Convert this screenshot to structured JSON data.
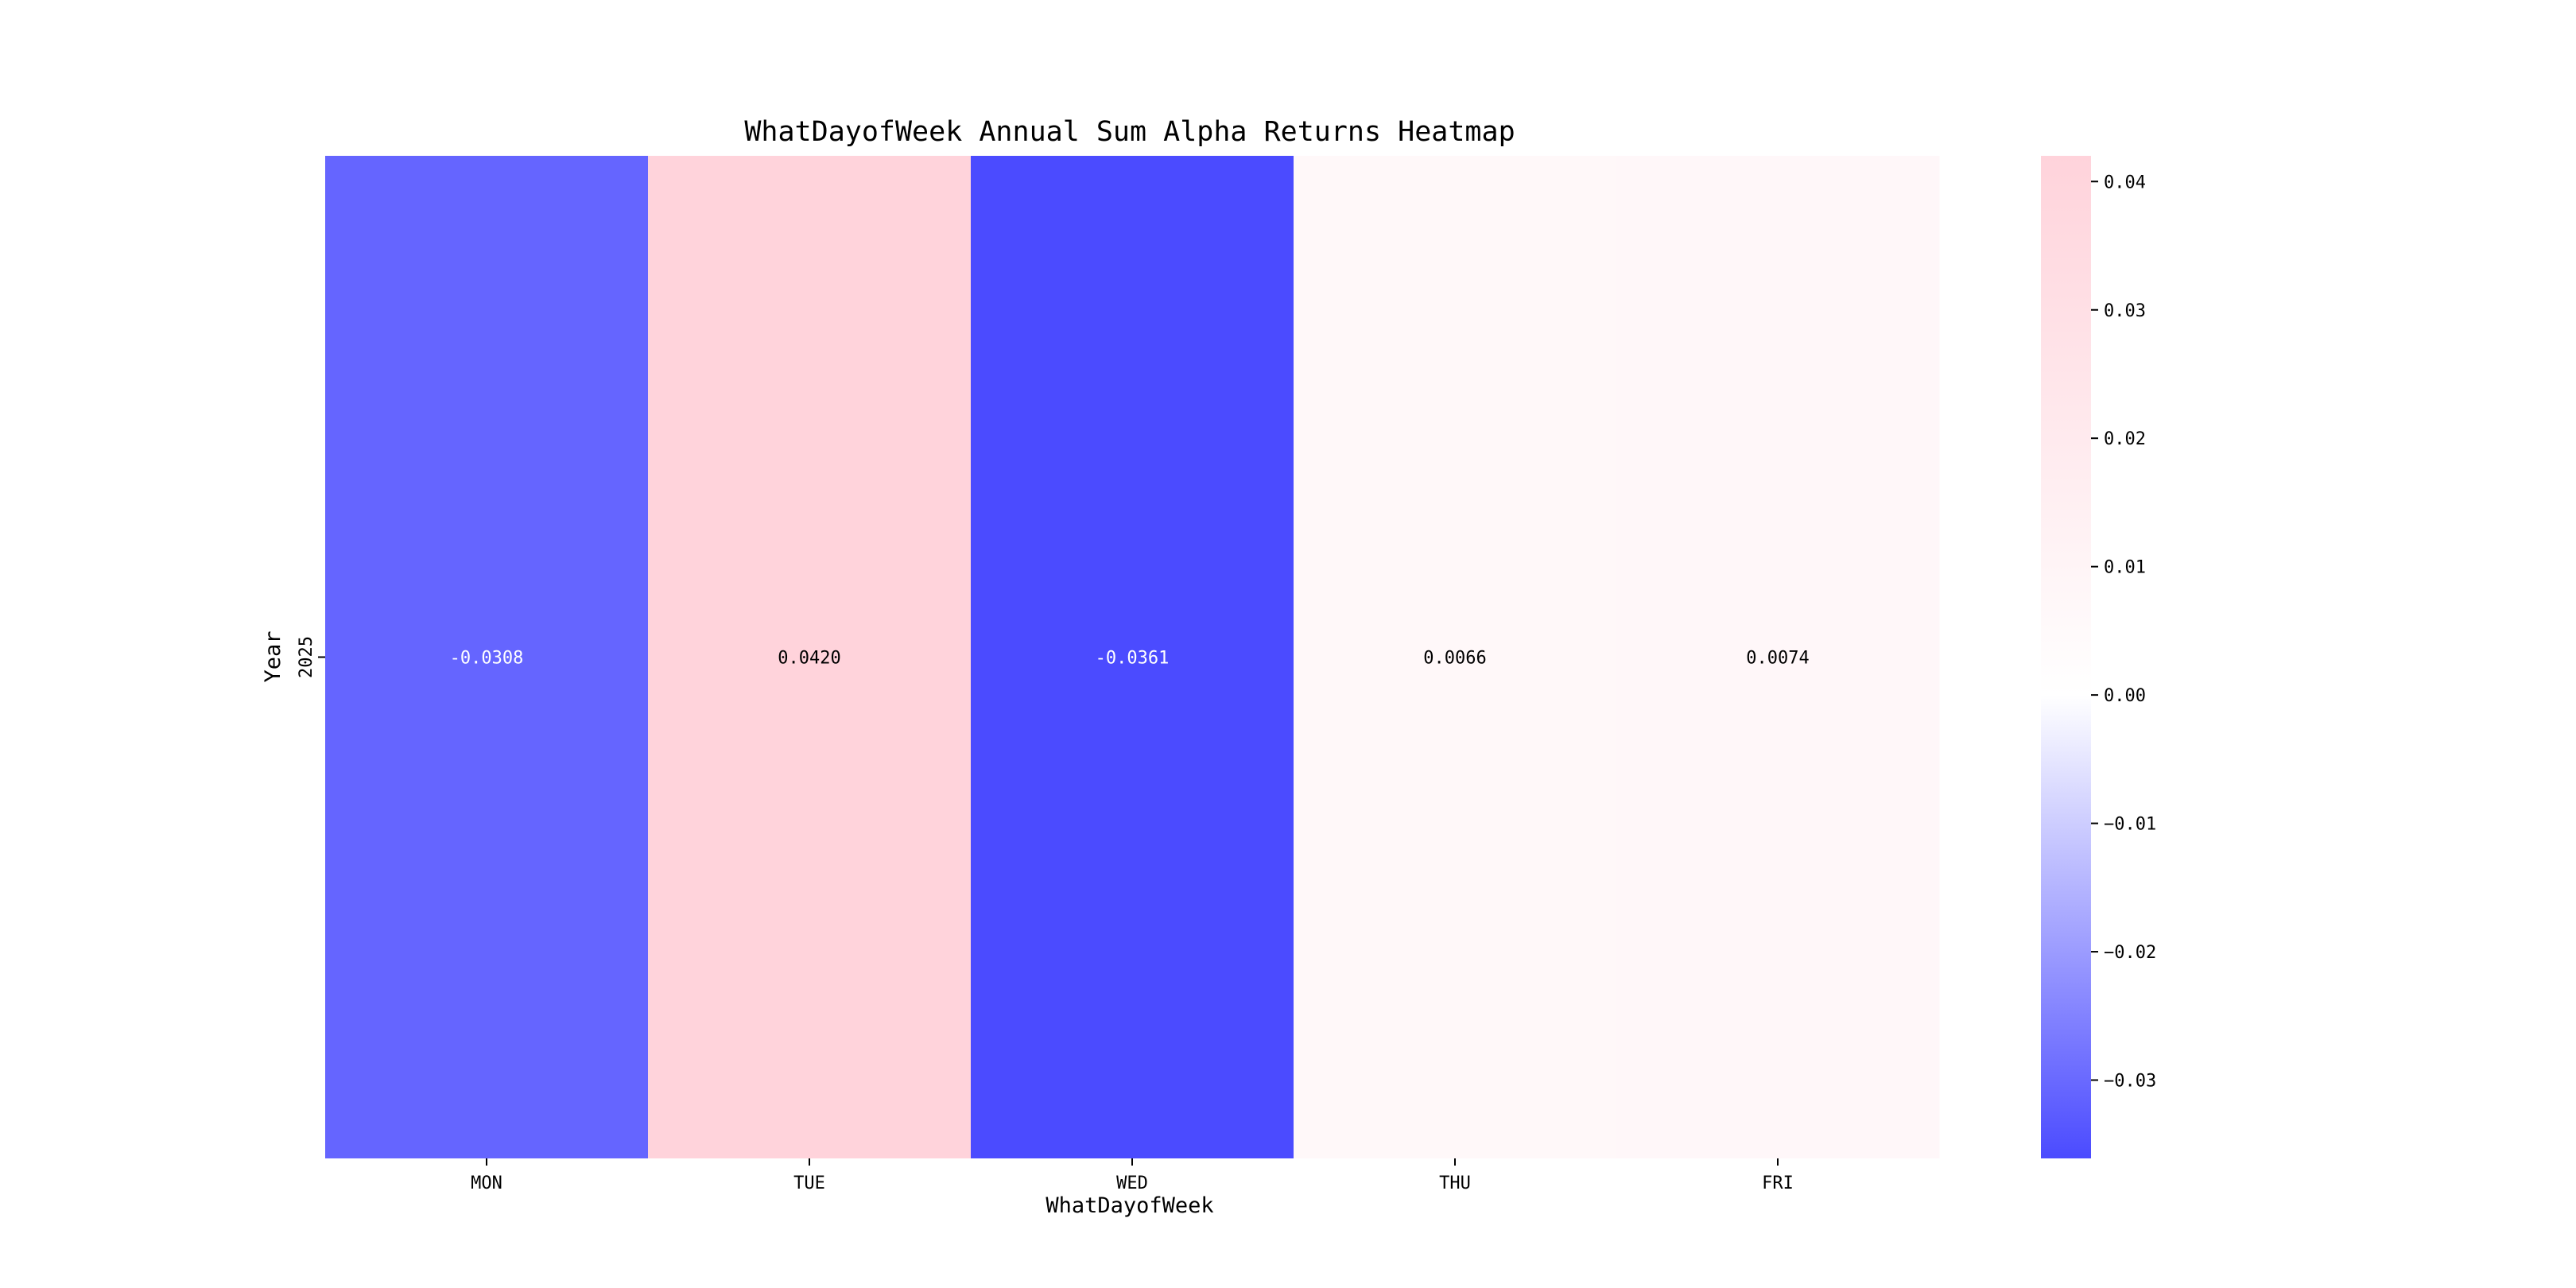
{
  "chart_data": {
    "type": "heatmap",
    "title": "WhatDayofWeek Annual Sum Alpha Returns Heatmap",
    "xlabel": "WhatDayofWeek",
    "ylabel": "Year",
    "x_categories": [
      "MON",
      "TUE",
      "WED",
      "THU",
      "FRI"
    ],
    "y_categories": [
      "2025"
    ],
    "values": [
      [
        -0.0308,
        0.042,
        -0.0361,
        0.0066,
        0.0074
      ]
    ],
    "cell_labels": [
      [
        "-0.0308",
        "0.0420",
        "-0.0361",
        "0.0066",
        "0.0074"
      ]
    ],
    "colorbar": {
      "range": [
        -0.0361,
        0.042
      ],
      "ticks": [
        0.04,
        0.03,
        0.02,
        0.01,
        0.0,
        -0.01,
        -0.02,
        -0.03
      ],
      "tick_labels": [
        "0.04",
        "0.03",
        "0.02",
        "0.01",
        "0.00",
        "−0.01",
        "−0.02",
        "−0.03"
      ],
      "colors": [
        "#4b4bff",
        "#ffffff",
        "#ffd3db"
      ]
    }
  }
}
